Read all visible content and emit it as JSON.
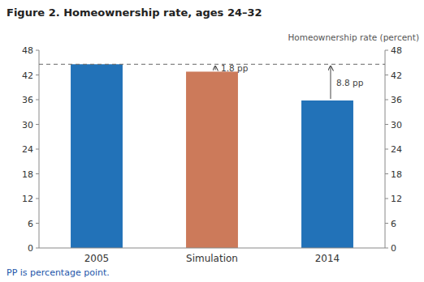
{
  "chart_data": {
    "type": "bar",
    "title": "Figure 2. Homeownership rate, ages 24–32",
    "y2_label": "Homeownership rate (percent)",
    "categories": [
      "2005",
      "Simulation",
      "2014"
    ],
    "values": [
      44.6,
      42.8,
      35.8
    ],
    "colors": [
      "#2272b8",
      "#cc7a5a",
      "#2272b8"
    ],
    "reference_line": 44.6,
    "annotations": [
      {
        "text": "1.8 pp",
        "category": "Simulation"
      },
      {
        "text": "8.8 pp",
        "category": "2014"
      }
    ],
    "ylim": [
      0,
      48
    ],
    "yticks": [
      0,
      6,
      12,
      18,
      24,
      30,
      36,
      42,
      48
    ],
    "y2lim": [
      0,
      48
    ],
    "y2ticks": [
      0,
      6,
      12,
      18,
      24,
      30,
      36,
      42,
      48
    ],
    "grid": false,
    "footnote": "PP is percentage point."
  }
}
